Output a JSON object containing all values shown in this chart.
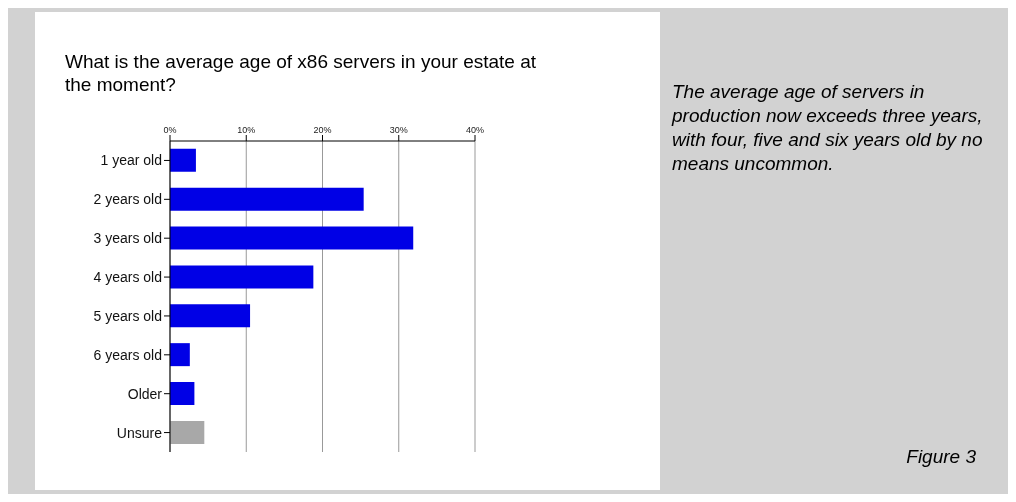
{
  "chart_data": {
    "type": "bar",
    "orientation": "horizontal",
    "title": "What is the average age of x86 servers in your estate at the moment?",
    "categories": [
      "1 year old",
      "2 years old",
      "3 years old",
      "4 years old",
      "5 years old",
      "6 years old",
      "Older",
      "Unsure"
    ],
    "values": [
      3.4,
      25.4,
      31.9,
      18.8,
      10.5,
      2.6,
      3.2,
      4.5
    ],
    "colors": [
      "#0000e6",
      "#0000e6",
      "#0000e6",
      "#0000e6",
      "#0000e6",
      "#0000e6",
      "#0000e6",
      "#a8a8a8"
    ],
    "xlim": [
      0,
      40
    ],
    "xticks": [
      {
        "value": 0,
        "label": "0%"
      },
      {
        "value": 10,
        "label": "10%"
      },
      {
        "value": 20,
        "label": "20%"
      },
      {
        "value": 30,
        "label": "30%"
      },
      {
        "value": 40,
        "label": "40%"
      }
    ],
    "grid": "x",
    "annotations": [
      "The average age of servers in production now exceeds three years, with four, five and six years old by no means uncommon.",
      "Figure 3"
    ]
  }
}
